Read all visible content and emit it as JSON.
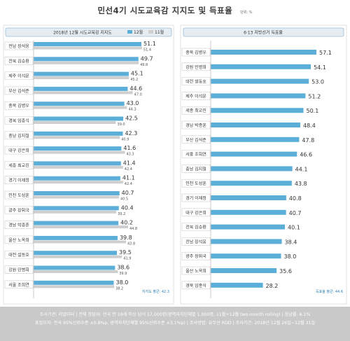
{
  "title": "민선4기 시도교육감 지지도 및 득표율",
  "unit": "단위: %",
  "footer": {
    "line1": "조사기관: 리얼미터 | 전체 응답자: 전국 만 19세 이상 남녀 17,000명(광역자치단체별 1,000명, 11월+12월 two-month rolling) | 응답률: 6.1%",
    "line2": "표집오차: 전국 95%신뢰수준 ±0.8%p, 광역자치단체별 95%신뢰수준 ±3.1%p) | 조사방법: 유무선 RDD | 조사기간: 2018년 12월 26일~12월 31일"
  },
  "colors": {
    "dec": "#5aaed8",
    "nov": "#cfcfcf",
    "header_bg": "#e5ecf2",
    "header_border": "#9bbcd6"
  },
  "chart_data": [
    {
      "type": "bar",
      "title": "2018년 12월 시도교육감 지지도",
      "series": [
        {
          "name": "12월",
          "values": [
            51.1,
            49.7,
            45.1,
            44.6,
            43.0,
            42.5,
            42.3,
            41.6,
            41.4,
            41.1,
            40.7,
            40.4,
            40.2,
            39.8,
            39.5,
            38.6,
            38.0
          ]
        },
        {
          "name": "11월",
          "values": [
            51.4,
            49.8,
            45.2,
            47.0,
            44.3,
            39.0,
            40.9,
            43.3,
            42.4,
            42.4,
            40.5,
            39.2,
            44.8,
            43.8,
            41.9,
            39.9,
            38.2
          ]
        }
      ],
      "categories": [
        "전남 장석웅",
        "전북 김승환",
        "제주 이석문",
        "부산 김석준",
        "충북 김병우",
        "경북 임종식",
        "충남 김지철",
        "대구 강은희",
        "세종 최교진",
        "경기 이재정",
        "인천 도성훈",
        "광주 장휘국",
        "경남 박종훈",
        "울산 노옥희",
        "대전 설동호",
        "강원 민병희",
        "서울 조희연"
      ],
      "annotation": "지지도 평균: 42.3"
    },
    {
      "type": "bar",
      "title": "6·13 지방선거 득표율",
      "series": [
        {
          "name": "득표율",
          "values": [
            57.1,
            54.1,
            53.0,
            51.2,
            50.1,
            48.4,
            47.8,
            46.6,
            44.1,
            43.8,
            40.8,
            40.7,
            40.1,
            38.4,
            38.0,
            35.6,
            28.2
          ]
        }
      ],
      "categories": [
        "충북 김병우",
        "강원 민병희",
        "대전 설동호",
        "제주 이석문",
        "세종 최교진",
        "경남 박종훈",
        "부산 김석준",
        "서울 조희연",
        "충남 김지철",
        "인천 도성훈",
        "경기 이재정",
        "대구 강은희",
        "전북 김승환",
        "전남 장석웅",
        "광주 장휘국",
        "울산 노옥희",
        "경북 임종식"
      ],
      "annotation": "득표율 평균: 44.6"
    }
  ]
}
